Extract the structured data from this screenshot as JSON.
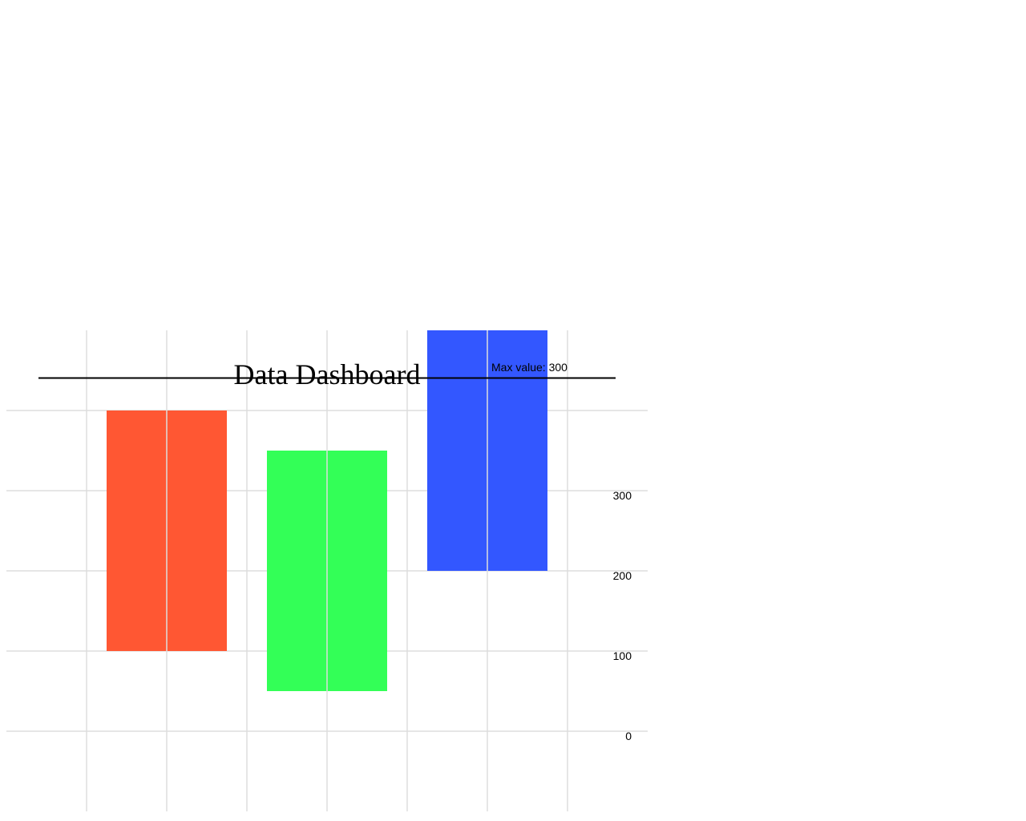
{
  "chart_data": {
    "type": "bar",
    "title": "Data Dashboard",
    "categories": [
      "",
      "",
      ""
    ],
    "series": [
      {
        "values": [
          300,
          300,
          300
        ]
      }
    ],
    "ranges": [
      [
        100,
        400
      ],
      [
        50,
        350
      ],
      [
        200,
        500
      ]
    ],
    "colors": [
      "#ff5733",
      "#33ff57",
      "#3357ff"
    ],
    "y_ticks": [
      0,
      100,
      200,
      300
    ],
    "ylim": [
      -100,
      500
    ],
    "grid": true,
    "max_label": "Max value: 300"
  }
}
